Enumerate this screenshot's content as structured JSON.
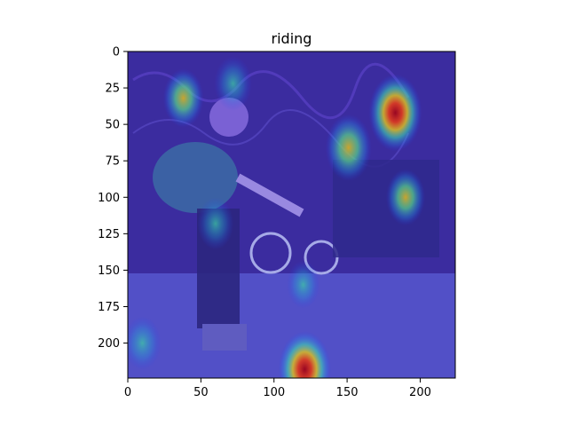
{
  "chart_data": {
    "type": "heatmap",
    "title": "riding",
    "xlabel": "",
    "ylabel": "",
    "xlim": [
      0,
      224
    ],
    "ylim": [
      224,
      0
    ],
    "xticks": [
      0,
      50,
      100,
      150,
      200
    ],
    "yticks": [
      0,
      25,
      50,
      75,
      100,
      125,
      150,
      175,
      200
    ],
    "grid": false,
    "image_description_colormap": "jet",
    "hotspots": [
      {
        "x": 183,
        "y": 42,
        "intensity": 1.0
      },
      {
        "x": 121,
        "y": 218,
        "intensity": 1.0
      },
      {
        "x": 151,
        "y": 66,
        "intensity": 0.75
      },
      {
        "x": 38,
        "y": 32,
        "intensity": 0.55
      },
      {
        "x": 72,
        "y": 22,
        "intensity": 0.45
      },
      {
        "x": 190,
        "y": 100,
        "intensity": 0.5
      },
      {
        "x": 10,
        "y": 200,
        "intensity": 0.45
      },
      {
        "x": 60,
        "y": 118,
        "intensity": 0.4
      },
      {
        "x": 120,
        "y": 160,
        "intensity": 0.3
      }
    ]
  }
}
